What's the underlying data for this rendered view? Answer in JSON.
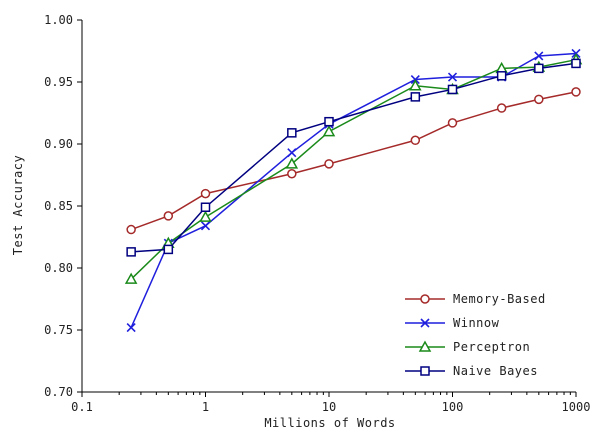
{
  "chart_data": {
    "type": "line",
    "xlabel": "Millions of Words",
    "ylabel": "Test Accuracy",
    "xscale": "log",
    "xlim": [
      0.1,
      1000
    ],
    "ylim": [
      0.7,
      1.0
    ],
    "x_tick_labels": [
      "0.1",
      "1",
      "10",
      "100",
      "1000"
    ],
    "x_ticks": [
      0.1,
      1,
      10,
      100,
      1000
    ],
    "y_tick_labels": [
      "0.70",
      "0.75",
      "0.80",
      "0.85",
      "0.90",
      "0.95",
      "1.00"
    ],
    "y_ticks": [
      0.7,
      0.75,
      0.8,
      0.85,
      0.9,
      0.95,
      1.0
    ],
    "grid": false,
    "legend_position": "bottom-right",
    "x": [
      0.25,
      0.5,
      1,
      5,
      10,
      50,
      100,
      250,
      500,
      1000
    ],
    "series": [
      {
        "name": "Memory-Based",
        "color": "#a52a2a",
        "marker": "circle",
        "values": [
          0.831,
          0.842,
          0.86,
          0.876,
          0.884,
          0.903,
          0.917,
          0.929,
          0.936,
          0.942
        ]
      },
      {
        "name": "Winnow",
        "color": "#1f1fdd",
        "marker": "x",
        "values": [
          0.752,
          0.82,
          0.834,
          0.893,
          0.916,
          0.952,
          0.954,
          0.954,
          0.971,
          0.973
        ]
      },
      {
        "name": "Perceptron",
        "color": "#1a8a1a",
        "marker": "triangle",
        "values": [
          0.791,
          0.82,
          0.841,
          0.884,
          0.91,
          0.947,
          0.944,
          0.961,
          0.962,
          0.968
        ]
      },
      {
        "name": "Naive Bayes",
        "color": "#000080",
        "marker": "square",
        "values": [
          0.813,
          0.815,
          0.849,
          0.909,
          0.918,
          0.938,
          0.944,
          0.955,
          0.961,
          0.965
        ]
      }
    ]
  }
}
